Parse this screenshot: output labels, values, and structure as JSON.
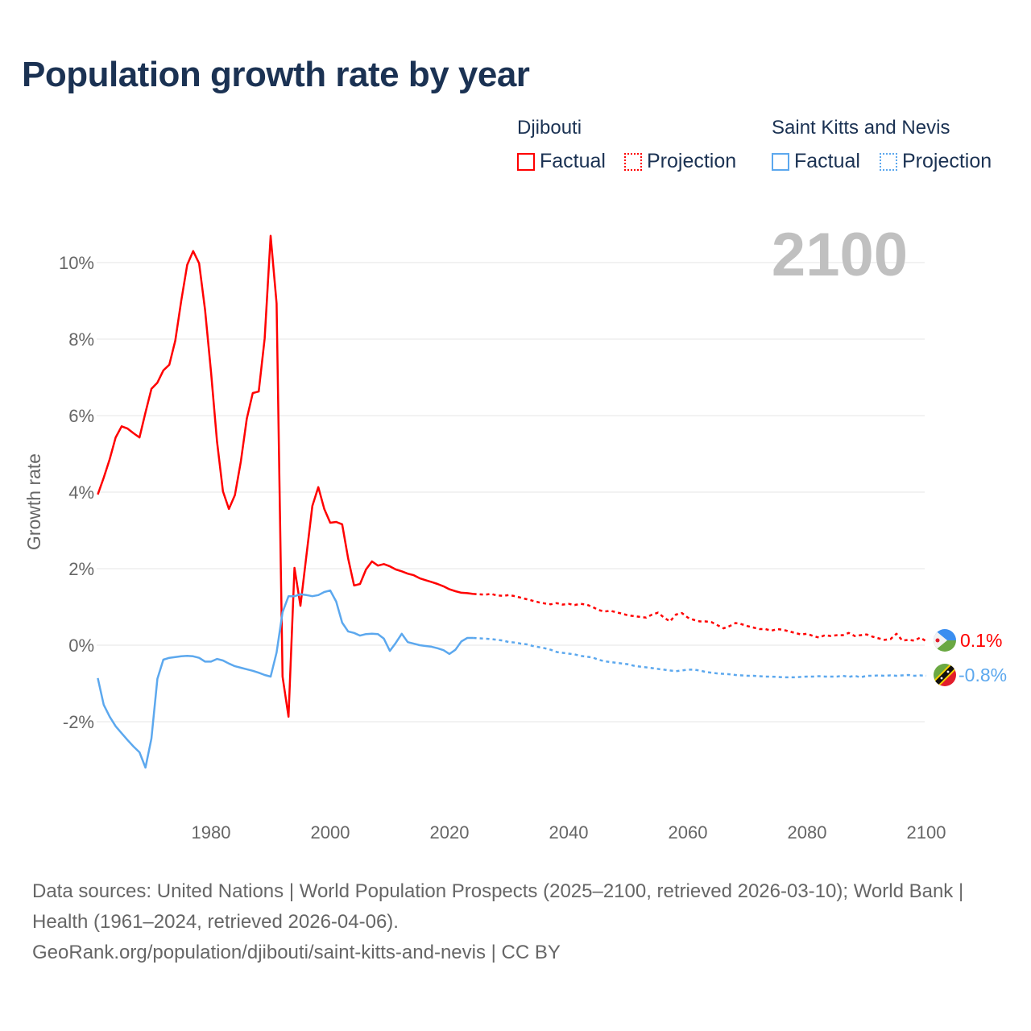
{
  "title": "Population growth rate by year",
  "legend": {
    "groups": [
      {
        "name": "Djibouti",
        "factual": "Factual",
        "projection": "Projection",
        "color": "#ff0000"
      },
      {
        "name": "Saint Kitts and Nevis",
        "factual": "Factual",
        "projection": "Projection",
        "color": "#5ca8ee"
      }
    ]
  },
  "year_watermark": "2100",
  "end_labels": {
    "djibouti": "0.1%",
    "skn": "-0.8%"
  },
  "footer": {
    "sources": "Data sources: United Nations | World Population Prospects (2025–2100, retrieved 2026-03-10); World Bank | Health (1961–2024, retrieved 2026-04-06).",
    "link": "GeoRank.org/population/djibouti/saint-kitts-and-nevis | CC BY"
  },
  "chart_data": {
    "type": "line",
    "title": "Population growth rate by year",
    "xlabel": "",
    "ylabel": "Growth rate",
    "xlim": [
      1961,
      2100
    ],
    "ylim": [
      -4,
      11
    ],
    "grid": true,
    "legend_position": "top-right",
    "xticks": [
      1980,
      2000,
      2020,
      2040,
      2060,
      2080,
      2100
    ],
    "xtick_labels": [
      "1980",
      "2000",
      "2020",
      "2040",
      "2060",
      "2080",
      "2100"
    ],
    "yticks": [
      -2,
      0,
      2,
      4,
      6,
      8,
      10
    ],
    "ytick_labels": [
      "-2%",
      "0%",
      "2%",
      "4%",
      "6%",
      "8%",
      "10%"
    ],
    "series": [
      {
        "name": "Djibouti Factual",
        "color": "#ff0000",
        "dash": false,
        "start_year": 1961,
        "values": [
          3.94,
          4.38,
          4.86,
          5.43,
          5.72,
          5.66,
          5.54,
          5.43,
          6.08,
          6.7,
          6.86,
          7.18,
          7.33,
          7.96,
          9.0,
          9.94,
          10.3,
          9.98,
          8.76,
          7.14,
          5.33,
          4.02,
          3.56,
          3.92,
          4.8,
          5.92,
          6.59,
          6.63,
          8.02,
          10.7,
          8.93,
          -0.82,
          -1.87,
          2.02,
          1.03,
          2.34,
          3.64,
          4.13,
          3.56,
          3.2,
          3.22,
          3.16,
          2.27,
          1.56,
          1.6,
          1.98,
          2.19,
          2.08,
          2.12,
          2.06,
          1.98,
          1.93,
          1.87,
          1.83,
          1.75,
          1.7,
          1.65,
          1.6,
          1.54,
          1.46,
          1.41,
          1.37,
          1.36,
          1.34
        ]
      },
      {
        "name": "Djibouti Projection",
        "color": "#ff0000",
        "dash": true,
        "start_year": 2025,
        "values": [
          1.33,
          1.32,
          1.34,
          1.3,
          1.29,
          1.31,
          1.28,
          1.24,
          1.2,
          1.16,
          1.12,
          1.09,
          1.07,
          1.1,
          1.06,
          1.08,
          1.05,
          1.08,
          1.06,
          1.0,
          0.92,
          0.88,
          0.9,
          0.86,
          0.82,
          0.78,
          0.76,
          0.74,
          0.72,
          0.8,
          0.85,
          0.72,
          0.62,
          0.8,
          0.84,
          0.72,
          0.66,
          0.62,
          0.62,
          0.6,
          0.52,
          0.44,
          0.5,
          0.58,
          0.55,
          0.5,
          0.46,
          0.42,
          0.42,
          0.38,
          0.42,
          0.4,
          0.36,
          0.32,
          0.28,
          0.3,
          0.24,
          0.2,
          0.26,
          0.24,
          0.26,
          0.26,
          0.32,
          0.24,
          0.26,
          0.28,
          0.22,
          0.18,
          0.14,
          0.16,
          0.3,
          0.12,
          0.14,
          0.12,
          0.2,
          0.1
        ]
      },
      {
        "name": "Saint Kitts and Nevis Factual",
        "color": "#5ca8ee",
        "dash": false,
        "start_year": 1961,
        "values": [
          -0.86,
          -1.56,
          -1.87,
          -2.12,
          -2.3,
          -2.48,
          -2.65,
          -2.8,
          -3.2,
          -2.44,
          -0.88,
          -0.38,
          -0.33,
          -0.31,
          -0.29,
          -0.28,
          -0.29,
          -0.33,
          -0.43,
          -0.43,
          -0.36,
          -0.4,
          -0.48,
          -0.55,
          -0.59,
          -0.63,
          -0.67,
          -0.72,
          -0.78,
          -0.82,
          -0.19,
          0.86,
          1.28,
          1.28,
          1.33,
          1.31,
          1.28,
          1.31,
          1.39,
          1.43,
          1.14,
          0.59,
          0.36,
          0.32,
          0.25,
          0.29,
          0.3,
          0.29,
          0.17,
          -0.15,
          0.06,
          0.3,
          0.08,
          0.04,
          0.0,
          -0.02,
          -0.04,
          -0.08,
          -0.13,
          -0.23,
          -0.12,
          0.1,
          0.19,
          0.19
        ]
      },
      {
        "name": "Saint Kitts and Nevis Projection",
        "color": "#5ca8ee",
        "dash": true,
        "start_year": 2025,
        "values": [
          0.18,
          0.17,
          0.16,
          0.14,
          0.12,
          0.08,
          0.07,
          0.04,
          0.02,
          -0.02,
          -0.05,
          -0.08,
          -0.12,
          -0.18,
          -0.2,
          -0.22,
          -0.24,
          -0.28,
          -0.3,
          -0.32,
          -0.38,
          -0.42,
          -0.44,
          -0.46,
          -0.48,
          -0.5,
          -0.54,
          -0.56,
          -0.58,
          -0.6,
          -0.62,
          -0.64,
          -0.66,
          -0.68,
          -0.66,
          -0.64,
          -0.64,
          -0.66,
          -0.7,
          -0.72,
          -0.74,
          -0.75,
          -0.76,
          -0.78,
          -0.79,
          -0.8,
          -0.8,
          -0.81,
          -0.82,
          -0.82,
          -0.83,
          -0.84,
          -0.84,
          -0.84,
          -0.83,
          -0.82,
          -0.82,
          -0.81,
          -0.82,
          -0.82,
          -0.82,
          -0.8,
          -0.83,
          -0.8,
          -0.84,
          -0.8,
          -0.8,
          -0.79,
          -0.8,
          -0.79,
          -0.8,
          -0.79,
          -0.78,
          -0.8,
          -0.79,
          -0.8
        ]
      }
    ]
  }
}
